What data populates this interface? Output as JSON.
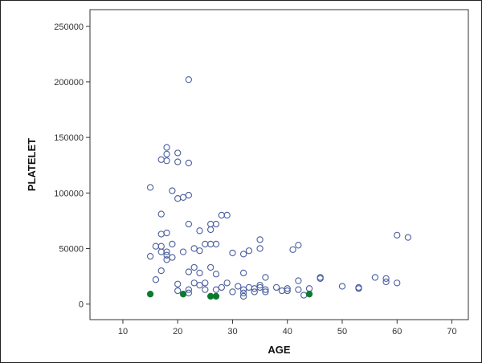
{
  "colors": {
    "background": "#ffffff",
    "plot_area": "#ffffff",
    "frame": "#333333",
    "outer_border": "#222222",
    "marker_open": "#4a5f9e",
    "marker_filled": "#0c7a2e"
  },
  "chart_data": {
    "type": "scatter",
    "title": "",
    "xlabel": "AGE",
    "ylabel": "PLATELET",
    "xlim": [
      4,
      73
    ],
    "ylim": [
      -14000,
      265000
    ],
    "x_ticks": [
      10,
      20,
      30,
      40,
      50,
      60,
      70
    ],
    "x_tick_labels": [
      "10",
      "20",
      "30",
      "40",
      "50",
      "60",
      "70"
    ],
    "y_ticks": [
      0,
      50000,
      100000,
      150000,
      200000,
      250000
    ],
    "y_tick_labels": [
      "0",
      "50000",
      "100000",
      "150000",
      "200000",
      "250000"
    ],
    "grid": false,
    "series": [
      {
        "marker": "open-circle",
        "points": [
          [
            15,
            105000
          ],
          [
            15,
            43000
          ],
          [
            16,
            52000
          ],
          [
            16,
            22000
          ],
          [
            17,
            130000
          ],
          [
            17,
            81000
          ],
          [
            17,
            63000
          ],
          [
            17,
            52000
          ],
          [
            17,
            47000
          ],
          [
            17,
            30000
          ],
          [
            18,
            141000
          ],
          [
            18,
            135000
          ],
          [
            18,
            129000
          ],
          [
            18,
            64000
          ],
          [
            18,
            47000
          ],
          [
            18,
            44000
          ],
          [
            18,
            40000
          ],
          [
            19,
            102000
          ],
          [
            19,
            54000
          ],
          [
            19,
            42000
          ],
          [
            20,
            136000
          ],
          [
            20,
            128000
          ],
          [
            20,
            95000
          ],
          [
            20,
            18000
          ],
          [
            20,
            12000
          ],
          [
            21,
            96000
          ],
          [
            21,
            47000
          ],
          [
            22,
            202000
          ],
          [
            22,
            127000
          ],
          [
            22,
            98000
          ],
          [
            22,
            72000
          ],
          [
            22,
            29000
          ],
          [
            22,
            13000
          ],
          [
            22,
            10000
          ],
          [
            23,
            50000
          ],
          [
            23,
            33000
          ],
          [
            23,
            19000
          ],
          [
            24,
            66000
          ],
          [
            24,
            48000
          ],
          [
            24,
            28000
          ],
          [
            24,
            17000
          ],
          [
            25,
            54000
          ],
          [
            25,
            19000
          ],
          [
            25,
            13000
          ],
          [
            26,
            72000
          ],
          [
            26,
            67000
          ],
          [
            26,
            54000
          ],
          [
            26,
            33000
          ],
          [
            27,
            72000
          ],
          [
            27,
            54000
          ],
          [
            27,
            27000
          ],
          [
            27,
            13000
          ],
          [
            28,
            80000
          ],
          [
            28,
            15000
          ],
          [
            29,
            80000
          ],
          [
            29,
            19000
          ],
          [
            30,
            46000
          ],
          [
            30,
            11000
          ],
          [
            31,
            16000
          ],
          [
            32,
            45000
          ],
          [
            32,
            28000
          ],
          [
            32,
            13000
          ],
          [
            32,
            10000
          ],
          [
            32,
            7000
          ],
          [
            33,
            48000
          ],
          [
            33,
            15000
          ],
          [
            34,
            14000
          ],
          [
            34,
            11000
          ],
          [
            35,
            58000
          ],
          [
            35,
            50000
          ],
          [
            35,
            17000
          ],
          [
            35,
            15000
          ],
          [
            36,
            24000
          ],
          [
            36,
            13000
          ],
          [
            36,
            11000
          ],
          [
            38,
            15000
          ],
          [
            39,
            12000
          ],
          [
            40,
            14000
          ],
          [
            40,
            12000
          ],
          [
            41,
            49000
          ],
          [
            42,
            53000
          ],
          [
            42,
            21000
          ],
          [
            42,
            13000
          ],
          [
            43,
            8000
          ],
          [
            44,
            14000
          ],
          [
            46,
            24000
          ],
          [
            46,
            23000
          ],
          [
            50,
            16000
          ],
          [
            53,
            15000
          ],
          [
            53,
            14000
          ],
          [
            56,
            24000
          ],
          [
            58,
            23000
          ],
          [
            58,
            20000
          ],
          [
            60,
            62000
          ],
          [
            60,
            19000
          ],
          [
            62,
            60000
          ]
        ]
      },
      {
        "marker": "filled-circle",
        "points": [
          [
            15,
            9000
          ],
          [
            21,
            9000
          ],
          [
            26,
            7000
          ],
          [
            27,
            7000
          ],
          [
            44,
            9000
          ]
        ]
      }
    ]
  }
}
